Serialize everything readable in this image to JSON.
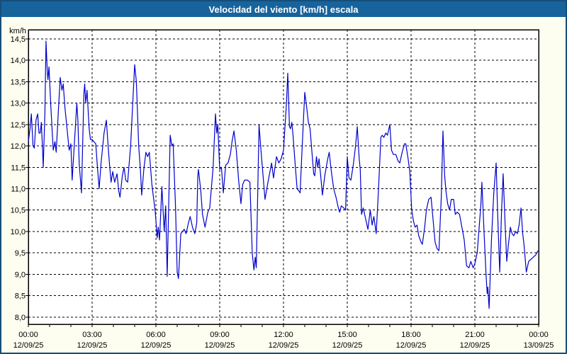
{
  "window": {
    "title": "Velocidad del viento [km/h] escala"
  },
  "colors": {
    "titlebar_bg": "#17639c",
    "titlebar_text": "#ffffff",
    "frame_border": "#164e7a",
    "canvas_bg": "#fdfdf0",
    "plot_bg": "#ffffff",
    "grid": "#000000",
    "axis": "#000000",
    "line": "#0000cd",
    "label_text": "#000000"
  },
  "chart_data": {
    "type": "line",
    "title": "Velocidad del viento [km/h] escala",
    "y_unit_label": "km/h",
    "ylim": [
      8.0,
      14.5
    ],
    "y_tick_step": 0.5,
    "y_tick_labels": [
      "14,5",
      "14,0",
      "13,5",
      "13,0",
      "12,5",
      "12,0",
      "11,5",
      "11,0",
      "10,5",
      "10,0",
      "9,5",
      "9,0",
      "8,5",
      "8,0"
    ],
    "x_hours_span": 24,
    "x_major_every_hours": 3,
    "x_minor_every_hours": 1,
    "x_tick_labels": [
      {
        "time": "00:00",
        "date": "12/09/25"
      },
      {
        "time": "03:00",
        "date": "12/09/25"
      },
      {
        "time": "06:00",
        "date": "12/09/25"
      },
      {
        "time": "09:00",
        "date": "12/09/25"
      },
      {
        "time": "12:00",
        "date": "12/09/25"
      },
      {
        "time": "15:00",
        "date": "12/09/25"
      },
      {
        "time": "18:00",
        "date": "12/09/25"
      },
      {
        "time": "21:00",
        "date": "12/09/25"
      },
      {
        "time": "00:00",
        "date": "13/09/25"
      }
    ],
    "grid": "dashed",
    "legend": "none",
    "series": [
      {
        "name": "Velocidad del viento [km/h]",
        "color": "#0000cd",
        "points_hour_value": [
          [
            0,
            12.1
          ],
          [
            0.08,
            12.4
          ],
          [
            0.14,
            12.75
          ],
          [
            0.22,
            12.0
          ],
          [
            0.28,
            11.95
          ],
          [
            0.36,
            12.6
          ],
          [
            0.44,
            12.75
          ],
          [
            0.5,
            12.3
          ],
          [
            0.56,
            12.3
          ],
          [
            0.61,
            12.55
          ],
          [
            0.67,
            11.9
          ],
          [
            0.7,
            11.5
          ],
          [
            0.78,
            12.8
          ],
          [
            0.83,
            14.45
          ],
          [
            0.89,
            13.75
          ],
          [
            0.92,
            13.55
          ],
          [
            0.97,
            13.85
          ],
          [
            1.06,
            12.9
          ],
          [
            1.17,
            11.9
          ],
          [
            1.25,
            12.1
          ],
          [
            1.31,
            11.85
          ],
          [
            1.42,
            12.9
          ],
          [
            1.5,
            13.6
          ],
          [
            1.58,
            13.3
          ],
          [
            1.64,
            13.45
          ],
          [
            1.72,
            12.9
          ],
          [
            1.81,
            12.45
          ],
          [
            1.92,
            11.9
          ],
          [
            2.0,
            12.05
          ],
          [
            2.06,
            11.2
          ],
          [
            2.17,
            12.1
          ],
          [
            2.28,
            13.0
          ],
          [
            2.33,
            12.6
          ],
          [
            2.39,
            11.6
          ],
          [
            2.5,
            10.9
          ],
          [
            2.61,
            13.2
          ],
          [
            2.65,
            13.45
          ],
          [
            2.7,
            13.0
          ],
          [
            2.76,
            13.3
          ],
          [
            2.86,
            12.4
          ],
          [
            2.92,
            12.15
          ],
          [
            3.0,
            12.15
          ],
          [
            3.08,
            12.1
          ],
          [
            3.17,
            12.05
          ],
          [
            3.25,
            11.5
          ],
          [
            3.33,
            11.0
          ],
          [
            3.42,
            11.6
          ],
          [
            3.56,
            12.3
          ],
          [
            3.67,
            12.6
          ],
          [
            3.78,
            11.8
          ],
          [
            3.83,
            11.5
          ],
          [
            3.89,
            11.15
          ],
          [
            3.97,
            11.4
          ],
          [
            4.06,
            11.15
          ],
          [
            4.17,
            11.35
          ],
          [
            4.25,
            10.95
          ],
          [
            4.31,
            10.8
          ],
          [
            4.42,
            11.3
          ],
          [
            4.5,
            11.5
          ],
          [
            4.58,
            11.2
          ],
          [
            4.67,
            11.15
          ],
          [
            4.81,
            12.0
          ],
          [
            5.0,
            13.9
          ],
          [
            5.08,
            13.5
          ],
          [
            5.19,
            12.0
          ],
          [
            5.27,
            11.45
          ],
          [
            5.33,
            10.85
          ],
          [
            5.44,
            11.5
          ],
          [
            5.53,
            11.85
          ],
          [
            5.61,
            11.75
          ],
          [
            5.69,
            11.85
          ],
          [
            5.81,
            11.1
          ],
          [
            5.97,
            10.45
          ],
          [
            6.06,
            9.85
          ],
          [
            6.11,
            10.1
          ],
          [
            6.17,
            9.8
          ],
          [
            6.28,
            11.05
          ],
          [
            6.39,
            10.0
          ],
          [
            6.46,
            10.6
          ],
          [
            6.53,
            8.95
          ],
          [
            6.67,
            12.25
          ],
          [
            6.75,
            12.0
          ],
          [
            6.81,
            12.05
          ],
          [
            6.92,
            10.6
          ],
          [
            7.0,
            9.05
          ],
          [
            7.06,
            8.9
          ],
          [
            7.17,
            9.95
          ],
          [
            7.25,
            10.0
          ],
          [
            7.33,
            10.05
          ],
          [
            7.42,
            9.95
          ],
          [
            7.53,
            10.2
          ],
          [
            7.61,
            10.35
          ],
          [
            7.72,
            10.1
          ],
          [
            7.83,
            9.95
          ],
          [
            7.92,
            10.2
          ],
          [
            7.97,
            11.3
          ],
          [
            8.0,
            11.45
          ],
          [
            8.11,
            10.95
          ],
          [
            8.19,
            10.4
          ],
          [
            8.31,
            10.1
          ],
          [
            8.44,
            10.45
          ],
          [
            8.53,
            10.55
          ],
          [
            8.69,
            11.5
          ],
          [
            8.8,
            12.75
          ],
          [
            8.86,
            12.3
          ],
          [
            8.91,
            12.5
          ],
          [
            9.0,
            11.45
          ],
          [
            9.08,
            11.5
          ],
          [
            9.17,
            10.9
          ],
          [
            9.28,
            11.55
          ],
          [
            9.39,
            11.6
          ],
          [
            9.5,
            11.8
          ],
          [
            9.58,
            12.1
          ],
          [
            9.67,
            12.35
          ],
          [
            9.78,
            11.9
          ],
          [
            9.89,
            11.2
          ],
          [
            10.0,
            10.65
          ],
          [
            10.08,
            11.1
          ],
          [
            10.17,
            11.2
          ],
          [
            10.31,
            11.2
          ],
          [
            10.42,
            11.15
          ],
          [
            10.53,
            9.5
          ],
          [
            10.61,
            9.1
          ],
          [
            10.67,
            9.4
          ],
          [
            10.72,
            9.15
          ],
          [
            10.85,
            12.5
          ],
          [
            10.94,
            11.9
          ],
          [
            11.13,
            10.75
          ],
          [
            11.25,
            11.1
          ],
          [
            11.44,
            11.6
          ],
          [
            11.53,
            11.25
          ],
          [
            11.67,
            11.75
          ],
          [
            11.78,
            11.6
          ],
          [
            11.89,
            11.7
          ],
          [
            12.0,
            11.9
          ],
          [
            12.14,
            13.0
          ],
          [
            12.2,
            13.7
          ],
          [
            12.28,
            12.45
          ],
          [
            12.33,
            12.4
          ],
          [
            12.39,
            12.55
          ],
          [
            12.44,
            12.3
          ],
          [
            12.56,
            11.5
          ],
          [
            12.64,
            11.0
          ],
          [
            12.72,
            10.95
          ],
          [
            12.78,
            10.9
          ],
          [
            12.89,
            12.1
          ],
          [
            13.0,
            13.25
          ],
          [
            13.08,
            12.95
          ],
          [
            13.17,
            12.55
          ],
          [
            13.25,
            12.4
          ],
          [
            13.33,
            11.9
          ],
          [
            13.42,
            11.35
          ],
          [
            13.47,
            11.3
          ],
          [
            13.55,
            11.75
          ],
          [
            13.61,
            11.5
          ],
          [
            13.67,
            11.7
          ],
          [
            13.75,
            11.3
          ],
          [
            13.83,
            10.85
          ],
          [
            13.94,
            11.3
          ],
          [
            14.08,
            11.7
          ],
          [
            14.15,
            11.85
          ],
          [
            14.25,
            11.4
          ],
          [
            14.36,
            11.0
          ],
          [
            14.47,
            10.8
          ],
          [
            14.58,
            10.55
          ],
          [
            14.64,
            10.45
          ],
          [
            14.72,
            10.6
          ],
          [
            14.83,
            10.55
          ],
          [
            14.92,
            10.5
          ],
          [
            15.0,
            11.75
          ],
          [
            15.08,
            11.25
          ],
          [
            15.17,
            11.2
          ],
          [
            15.28,
            11.55
          ],
          [
            15.39,
            12.0
          ],
          [
            15.47,
            12.45
          ],
          [
            15.56,
            11.7
          ],
          [
            15.61,
            11.45
          ],
          [
            15.67,
            10.4
          ],
          [
            15.75,
            10.55
          ],
          [
            15.86,
            10.3
          ],
          [
            15.97,
            10.05
          ],
          [
            16.08,
            10.5
          ],
          [
            16.17,
            10.15
          ],
          [
            16.25,
            10.35
          ],
          [
            16.36,
            9.95
          ],
          [
            16.47,
            11.0
          ],
          [
            16.58,
            12.2
          ],
          [
            16.64,
            12.25
          ],
          [
            16.72,
            12.2
          ],
          [
            16.81,
            12.3
          ],
          [
            16.89,
            12.25
          ],
          [
            17.0,
            12.5
          ],
          [
            17.08,
            11.9
          ],
          [
            17.17,
            11.8
          ],
          [
            17.28,
            11.8
          ],
          [
            17.39,
            11.65
          ],
          [
            17.47,
            11.6
          ],
          [
            17.58,
            11.85
          ],
          [
            17.69,
            12.05
          ],
          [
            17.75,
            12.05
          ],
          [
            17.86,
            11.7
          ],
          [
            17.94,
            11.4
          ],
          [
            18.03,
            10.5
          ],
          [
            18.11,
            10.25
          ],
          [
            18.19,
            10.1
          ],
          [
            18.28,
            10.15
          ],
          [
            18.36,
            9.9
          ],
          [
            18.47,
            9.75
          ],
          [
            18.53,
            9.7
          ],
          [
            18.64,
            10.1
          ],
          [
            18.72,
            10.5
          ],
          [
            18.83,
            10.75
          ],
          [
            18.94,
            10.8
          ],
          [
            19.13,
            9.75
          ],
          [
            19.22,
            9.6
          ],
          [
            19.31,
            9.55
          ],
          [
            19.42,
            10.8
          ],
          [
            19.5,
            12.35
          ],
          [
            19.58,
            11.3
          ],
          [
            19.64,
            10.95
          ],
          [
            19.72,
            10.65
          ],
          [
            19.81,
            10.5
          ],
          [
            19.89,
            10.75
          ],
          [
            20.0,
            10.75
          ],
          [
            20.08,
            10.4
          ],
          [
            20.17,
            10.45
          ],
          [
            20.28,
            10.4
          ],
          [
            20.39,
            10.1
          ],
          [
            20.5,
            9.8
          ],
          [
            20.61,
            9.2
          ],
          [
            20.72,
            9.15
          ],
          [
            20.81,
            9.3
          ],
          [
            20.92,
            9.15
          ],
          [
            21.0,
            9.25
          ],
          [
            21.11,
            9.5
          ],
          [
            21.28,
            10.6
          ],
          [
            21.33,
            11.15
          ],
          [
            21.44,
            9.9
          ],
          [
            21.53,
            8.95
          ],
          [
            21.58,
            8.55
          ],
          [
            21.61,
            8.7
          ],
          [
            21.67,
            8.2
          ],
          [
            21.78,
            9.8
          ],
          [
            21.89,
            10.9
          ],
          [
            22.0,
            11.6
          ],
          [
            22.08,
            10.3
          ],
          [
            22.17,
            9.05
          ],
          [
            22.25,
            10.4
          ],
          [
            22.33,
            11.35
          ],
          [
            22.42,
            10.2
          ],
          [
            22.5,
            9.3
          ],
          [
            22.58,
            9.7
          ],
          [
            22.67,
            10.1
          ],
          [
            22.75,
            9.95
          ],
          [
            22.83,
            9.9
          ],
          [
            22.92,
            10.0
          ],
          [
            23.0,
            9.95
          ],
          [
            23.08,
            10.15
          ],
          [
            23.17,
            10.55
          ],
          [
            23.25,
            9.95
          ],
          [
            23.31,
            9.7
          ],
          [
            23.42,
            9.05
          ],
          [
            23.53,
            9.3
          ],
          [
            23.64,
            9.35
          ],
          [
            23.75,
            9.4
          ],
          [
            23.86,
            9.45
          ],
          [
            23.97,
            9.55
          ]
        ]
      }
    ]
  }
}
